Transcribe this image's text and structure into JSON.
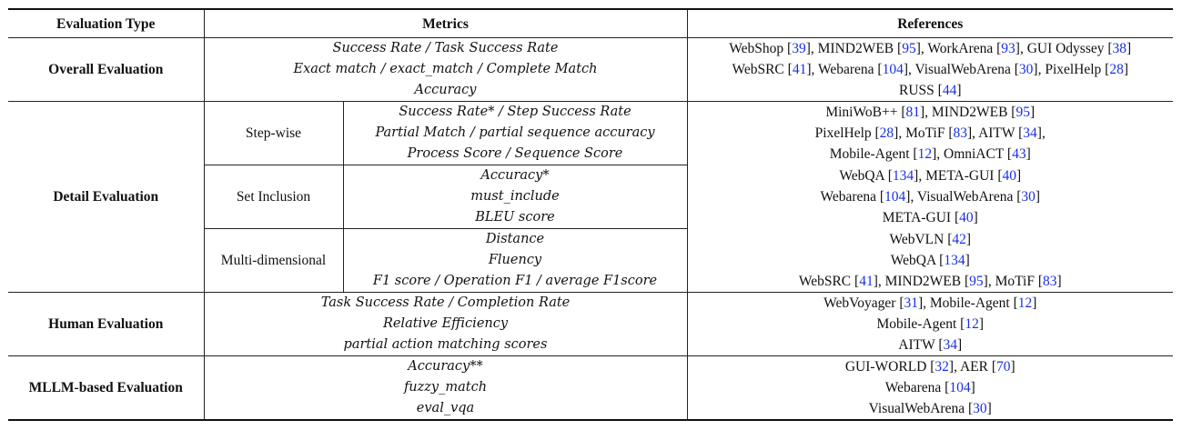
{
  "headers": {
    "evaluation_type": "Evaluation Type",
    "metrics": "Metrics",
    "references": "References"
  },
  "overall": {
    "category": "Overall Evaluation",
    "rows": [
      {
        "metric": "Success Rate / Task Success Rate",
        "refs": [
          {
            "t": "WebShop ["
          },
          {
            "r": "39"
          },
          {
            "t": "], MIND2WEB ["
          },
          {
            "r": "95"
          },
          {
            "t": "], WorkArena ["
          },
          {
            "r": "93"
          },
          {
            "t": "], GUI Odyssey ["
          },
          {
            "r": "38"
          },
          {
            "t": "]"
          }
        ]
      },
      {
        "metric": "Exact match / exact_match / Complete Match",
        "refs": [
          {
            "t": "WebSRC ["
          },
          {
            "r": "41"
          },
          {
            "t": "], Webarena ["
          },
          {
            "r": "104"
          },
          {
            "t": "], VisualWebArena ["
          },
          {
            "r": "30"
          },
          {
            "t": "], PixelHelp ["
          },
          {
            "r": "28"
          },
          {
            "t": "]"
          }
        ]
      },
      {
        "metric": "Accuracy",
        "refs": [
          {
            "t": "RUSS ["
          },
          {
            "r": "44"
          },
          {
            "t": "]"
          }
        ]
      }
    ]
  },
  "detail": {
    "category": "Detail Evaluation",
    "groups": [
      {
        "name": "Step-wise",
        "rows": [
          {
            "metric": "Success Rate* / Step Success Rate",
            "refs": [
              {
                "t": "MiniWoB++ ["
              },
              {
                "r": "81"
              },
              {
                "t": "], MIND2WEB ["
              },
              {
                "r": "95"
              },
              {
                "t": "]"
              }
            ]
          },
          {
            "metric": "Partial Match / partial sequence accuracy",
            "refs": [
              {
                "t": "PixelHelp ["
              },
              {
                "r": "28"
              },
              {
                "t": "], MoTiF ["
              },
              {
                "r": "83"
              },
              {
                "t": "], AITW ["
              },
              {
                "r": "34"
              },
              {
                "t": "],"
              }
            ]
          },
          {
            "metric": "Process Score / Sequence Score",
            "refs": [
              {
                "t": "Mobile-Agent ["
              },
              {
                "r": "12"
              },
              {
                "t": "], OmniACT ["
              },
              {
                "r": "43"
              },
              {
                "t": "]"
              }
            ]
          }
        ]
      },
      {
        "name": "Set Inclusion",
        "rows": [
          {
            "metric": "Accuracy*",
            "refs": [
              {
                "t": "WebQA ["
              },
              {
                "r": "134"
              },
              {
                "t": "], META-GUI ["
              },
              {
                "r": "40"
              },
              {
                "t": "]"
              }
            ]
          },
          {
            "metric": "must_include",
            "refs": [
              {
                "t": "Webarena ["
              },
              {
                "r": "104"
              },
              {
                "t": "], VisualWebArena ["
              },
              {
                "r": "30"
              },
              {
                "t": "]"
              }
            ]
          },
          {
            "metric": "BLEU score",
            "refs": [
              {
                "t": "META-GUI ["
              },
              {
                "r": "40"
              },
              {
                "t": "]"
              }
            ]
          }
        ]
      },
      {
        "name": "Multi-dimensional",
        "rows": [
          {
            "metric": "Distance",
            "refs": [
              {
                "t": "WebVLN ["
              },
              {
                "r": "42"
              },
              {
                "t": "]"
              }
            ]
          },
          {
            "metric": "Fluency",
            "refs": [
              {
                "t": "WebQA ["
              },
              {
                "r": "134"
              },
              {
                "t": "]"
              }
            ]
          },
          {
            "metric": "F1 score / Operation F1 / average F1score",
            "refs": [
              {
                "t": "WebSRC ["
              },
              {
                "r": "41"
              },
              {
                "t": "], MIND2WEB ["
              },
              {
                "r": "95"
              },
              {
                "t": "], MoTiF ["
              },
              {
                "r": "83"
              },
              {
                "t": "]"
              }
            ]
          }
        ]
      }
    ]
  },
  "human": {
    "category": "Human Evaluation",
    "rows": [
      {
        "metric": "Task Success Rate / Completion Rate",
        "refs": [
          {
            "t": "WebVoyager ["
          },
          {
            "r": "31"
          },
          {
            "t": "], Mobile-Agent ["
          },
          {
            "r": "12"
          },
          {
            "t": "]"
          }
        ]
      },
      {
        "metric": "Relative Efficiency",
        "refs": [
          {
            "t": "Mobile-Agent ["
          },
          {
            "r": "12"
          },
          {
            "t": "]"
          }
        ]
      },
      {
        "metric": "partial action matching scores",
        "refs": [
          {
            "t": "AITW ["
          },
          {
            "r": "34"
          },
          {
            "t": "]"
          }
        ]
      }
    ]
  },
  "mllm": {
    "category": "MLLM-based Evaluation",
    "rows": [
      {
        "metric": "Accuracy**",
        "refs": [
          {
            "t": "GUI-WORLD ["
          },
          {
            "r": "32"
          },
          {
            "t": "], AER ["
          },
          {
            "r": "70"
          },
          {
            "t": "]"
          }
        ]
      },
      {
        "metric": "fuzzy_match",
        "refs": [
          {
            "t": "Webarena ["
          },
          {
            "r": "104"
          },
          {
            "t": "]"
          }
        ]
      },
      {
        "metric": "eval_vqa",
        "refs": [
          {
            "t": "VisualWebArena ["
          },
          {
            "r": "30"
          },
          {
            "t": "]"
          }
        ]
      }
    ]
  }
}
